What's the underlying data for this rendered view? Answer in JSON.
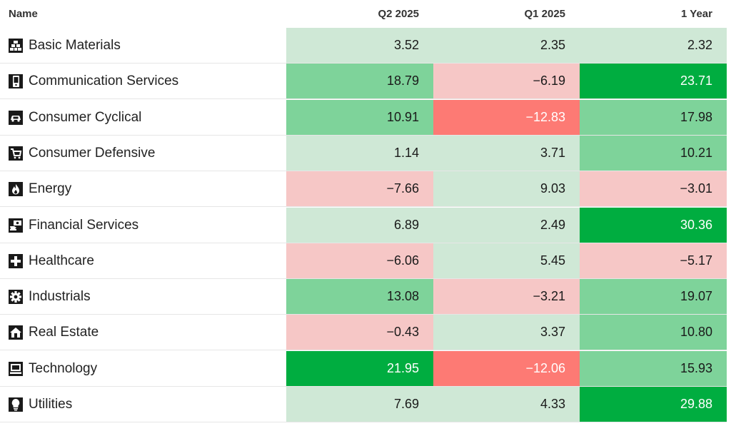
{
  "colors": {
    "neg_strong": "#fd7a74",
    "neg_light": "#f6c7c6",
    "pos_light": "#cfe8d6",
    "pos_mid": "#7ed39a",
    "pos_strong": "#00ad40"
  },
  "chart_data": {
    "type": "table",
    "columns": [
      "Name",
      "Q2 2025",
      "Q1 2025",
      "1 Year"
    ],
    "rows": [
      {
        "name": "Basic Materials",
        "icon": "building-blocks-icon",
        "values": [
          "3.52",
          "2.35",
          "2.32"
        ],
        "levels": [
          "pos_light",
          "pos_light",
          "pos_light"
        ]
      },
      {
        "name": "Communication Services",
        "icon": "phone-icon",
        "values": [
          "18.79",
          "−6.19",
          "23.71"
        ],
        "levels": [
          "pos_mid",
          "neg_light",
          "pos_strong"
        ]
      },
      {
        "name": "Consumer Cyclical",
        "icon": "car-icon",
        "values": [
          "10.91",
          "−12.83",
          "17.98"
        ],
        "levels": [
          "pos_mid",
          "neg_strong",
          "pos_mid"
        ]
      },
      {
        "name": "Consumer Defensive",
        "icon": "shopping-cart-icon",
        "values": [
          "1.14",
          "3.71",
          "10.21"
        ],
        "levels": [
          "pos_light",
          "pos_light",
          "pos_mid"
        ]
      },
      {
        "name": "Energy",
        "icon": "flame-icon",
        "values": [
          "−7.66",
          "9.03",
          "−3.01"
        ],
        "levels": [
          "neg_light",
          "pos_light",
          "neg_light"
        ]
      },
      {
        "name": "Financial Services",
        "icon": "money-hand-icon",
        "values": [
          "6.89",
          "2.49",
          "30.36"
        ],
        "levels": [
          "pos_light",
          "pos_light",
          "pos_strong"
        ]
      },
      {
        "name": "Healthcare",
        "icon": "medical-cross-icon",
        "values": [
          "−6.06",
          "5.45",
          "−5.17"
        ],
        "levels": [
          "neg_light",
          "pos_light",
          "neg_light"
        ]
      },
      {
        "name": "Industrials",
        "icon": "gear-icon",
        "values": [
          "13.08",
          "−3.21",
          "19.07"
        ],
        "levels": [
          "pos_mid",
          "neg_light",
          "pos_mid"
        ]
      },
      {
        "name": "Real Estate",
        "icon": "house-icon",
        "values": [
          "−0.43",
          "3.37",
          "10.80"
        ],
        "levels": [
          "neg_light",
          "pos_light",
          "pos_mid"
        ]
      },
      {
        "name": "Technology",
        "icon": "computer-icon",
        "values": [
          "21.95",
          "−12.06",
          "15.93"
        ],
        "levels": [
          "pos_strong",
          "neg_strong",
          "pos_mid"
        ]
      },
      {
        "name": "Utilities",
        "icon": "lightbulb-icon",
        "values": [
          "7.69",
          "4.33",
          "29.88"
        ],
        "levels": [
          "pos_light",
          "pos_light",
          "pos_strong"
        ]
      }
    ]
  }
}
